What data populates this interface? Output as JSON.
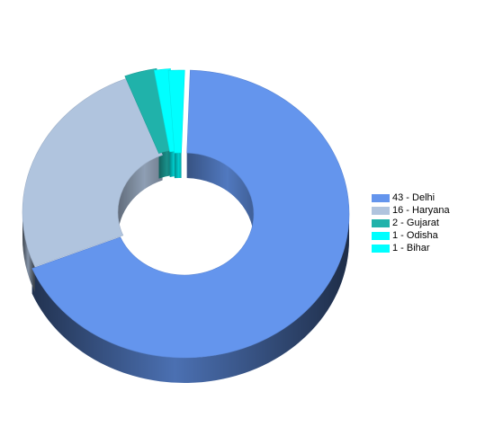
{
  "chart_data": {
    "type": "pie",
    "style": "3d-doughnut",
    "title": "",
    "series": [
      {
        "name": "Delhi",
        "value": 43,
        "label": "43 - Delhi",
        "color": "#6495ED"
      },
      {
        "name": "Haryana",
        "value": 16,
        "label": "16 - Haryana",
        "color": "#B0C4DE"
      },
      {
        "name": "Gujarat",
        "value": 2,
        "label": "2 - Gujarat",
        "color": "#20B2AA"
      },
      {
        "name": "Odisha",
        "value": 1,
        "label": "1 - Odisha",
        "color": "#00FFFF"
      },
      {
        "name": "Bihar",
        "value": 1,
        "label": "1 - Bihar",
        "color": "#00FFFF"
      }
    ],
    "legend_position": "right"
  }
}
